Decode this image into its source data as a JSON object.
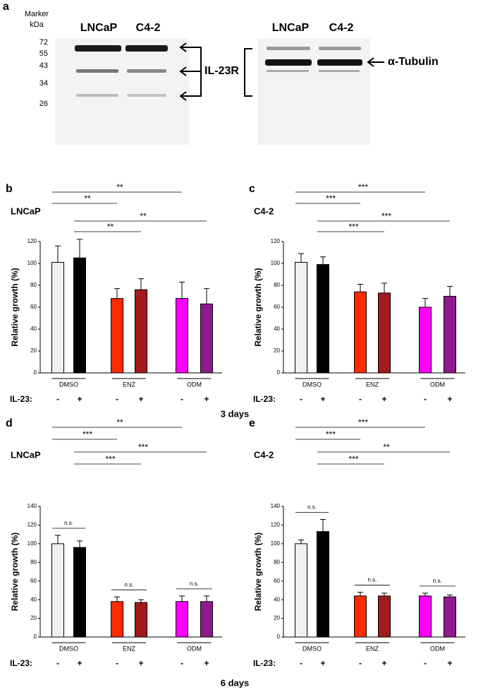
{
  "figure": {
    "panel_a": "a",
    "marker_label_1": "Marker",
    "marker_label_2": "kDa",
    "markers": [
      72,
      55,
      43,
      34,
      26
    ],
    "lanes_left": [
      "LNCaP",
      "C4-2"
    ],
    "lanes_right": [
      "LNCaP",
      "C4-2"
    ],
    "il23r": "IL-23R",
    "tubulin": "α-Tubulin",
    "days_3": "3 days",
    "days_6": "6 days"
  },
  "chart_data": [
    {
      "type": "bar",
      "panel": "b",
      "title": "LNCaP",
      "ylabel": "Relative growth (%)",
      "groups": [
        "DMSO",
        "ENZ",
        "ODM"
      ],
      "row_label": "IL-23:",
      "categories": [
        "-",
        "+",
        "-",
        "+",
        "-",
        "+"
      ],
      "values": [
        101,
        105,
        68,
        76,
        68,
        63
      ],
      "errors": [
        15,
        17,
        9,
        10,
        15,
        14
      ],
      "colors": [
        "#f0f0f0",
        "#000000",
        "#ff2a00",
        "#a31a1a",
        "#ff00ff",
        "#8e1a8e"
      ],
      "ylim": [
        0,
        120
      ],
      "yticks": [
        0,
        20,
        40,
        60,
        80,
        100,
        120
      ],
      "significance": [
        "**",
        "**",
        "**",
        "**"
      ]
    },
    {
      "type": "bar",
      "panel": "c",
      "title": "C4-2",
      "ylabel": "Relative growth (%)",
      "groups": [
        "DMSO",
        "ENZ",
        "ODM"
      ],
      "row_label": "IL-23:",
      "categories": [
        "-",
        "+",
        "-",
        "+",
        "-",
        "+"
      ],
      "values": [
        101,
        99,
        74,
        73,
        60,
        70
      ],
      "errors": [
        8,
        7,
        7,
        9,
        8,
        9
      ],
      "colors": [
        "#f0f0f0",
        "#000000",
        "#ff2a00",
        "#a31a1a",
        "#ff00ff",
        "#8e1a8e"
      ],
      "ylim": [
        0,
        120
      ],
      "yticks": [
        0,
        20,
        40,
        60,
        80,
        100,
        120
      ],
      "significance": [
        "***",
        "***",
        "***",
        "***"
      ]
    },
    {
      "type": "bar",
      "panel": "d",
      "title": "LNCaP",
      "ylabel": "Relative growth (%)",
      "groups": [
        "DMSO",
        "ENZ",
        "ODM"
      ],
      "row_label": "IL-23:",
      "categories": [
        "-",
        "+",
        "-",
        "+",
        "-",
        "+"
      ],
      "values": [
        100,
        96,
        38,
        37,
        38,
        38
      ],
      "errors": [
        9,
        7,
        5,
        3,
        6,
        6
      ],
      "colors": [
        "#f0f0f0",
        "#000000",
        "#ff2a00",
        "#a31a1a",
        "#ff00ff",
        "#8e1a8e"
      ],
      "ylim": [
        0,
        140
      ],
      "yticks": [
        0,
        20,
        40,
        60,
        80,
        100,
        120,
        140
      ],
      "significance": [
        "**",
        "***",
        "***",
        "***"
      ],
      "pair_labels": [
        "n.s.",
        "n.s.",
        "n.s."
      ]
    },
    {
      "type": "bar",
      "panel": "e",
      "title": "C4-2",
      "ylabel": "Relative growth (%)",
      "groups": [
        "DMSO",
        "ENZ",
        "ODM"
      ],
      "row_label": "IL-23:",
      "categories": [
        "-",
        "+",
        "-",
        "+",
        "-",
        "+"
      ],
      "values": [
        100,
        113,
        44,
        44,
        44,
        43
      ],
      "errors": [
        4,
        13,
        4,
        3,
        3,
        2
      ],
      "colors": [
        "#f0f0f0",
        "#000000",
        "#ff2a00",
        "#a31a1a",
        "#ff00ff",
        "#8e1a8e"
      ],
      "ylim": [
        0,
        140
      ],
      "yticks": [
        0,
        20,
        40,
        60,
        80,
        100,
        120,
        140
      ],
      "significance": [
        "***",
        "***",
        "**",
        "***"
      ],
      "pair_labels": [
        "n.s.",
        "n.s.",
        "n.s."
      ]
    }
  ]
}
